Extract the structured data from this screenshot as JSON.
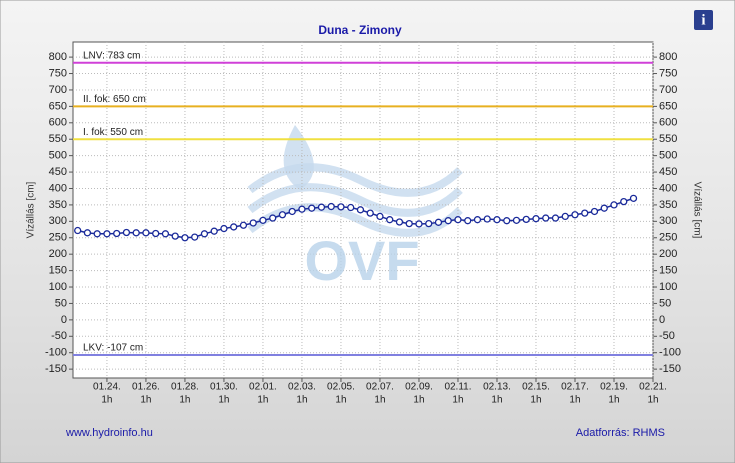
{
  "chart_data": {
    "type": "line",
    "title": "Duna - Zimony",
    "y_label": "Vízállás [cm]",
    "y2_label": "Vízállás [cm]",
    "watermark": "OVF",
    "footer_left": "www.hydroinfo.hu",
    "footer_right": "Adatforrás: RHMS",
    "info_icon": "i",
    "xtick_sublabel": "1h",
    "xlim": [
      22.26,
      52
    ],
    "xticks": [
      {
        "value": 24,
        "label": "01.24."
      },
      {
        "value": 26,
        "label": "01.26."
      },
      {
        "value": 28,
        "label": "01.28."
      },
      {
        "value": 30,
        "label": "01.30."
      },
      {
        "value": 32,
        "label": "02.01."
      },
      {
        "value": 34,
        "label": "02.03."
      },
      {
        "value": 36,
        "label": "02.05."
      },
      {
        "value": 38,
        "label": "02.07."
      },
      {
        "value": 40,
        "label": "02.09."
      },
      {
        "value": 42,
        "label": "02.11."
      },
      {
        "value": 44,
        "label": "02.13."
      },
      {
        "value": 46,
        "label": "02.15."
      },
      {
        "value": 48,
        "label": "02.17."
      },
      {
        "value": 50,
        "label": "02.19."
      },
      {
        "value": 52,
        "label": "02.21."
      }
    ],
    "ylim": [
      -177,
      846
    ],
    "yticks": [
      -150,
      -100,
      -50,
      0,
      50,
      100,
      150,
      200,
      250,
      300,
      350,
      400,
      450,
      500,
      550,
      600,
      650,
      700,
      750,
      800
    ],
    "y2lim": [
      -177,
      846
    ],
    "y2ticks": [
      -150,
      -100,
      -50,
      0,
      50,
      100,
      150,
      200,
      250,
      300,
      350,
      400,
      450,
      500,
      550,
      600,
      650,
      700,
      750,
      800
    ],
    "grid": true,
    "reference_lines": [
      {
        "label": "LNV: 783 cm",
        "value": 783,
        "color": "#d040d8"
      },
      {
        "label": "II. fok: 650 cm",
        "value": 650,
        "color": "#e8b020"
      },
      {
        "label": "I. fok: 550 cm",
        "value": 550,
        "color": "#f0e040"
      },
      {
        "label": "LKV: -107 cm",
        "value": -107,
        "color": "#8080e0"
      }
    ],
    "series": [
      {
        "name": "Vízállás",
        "color": "#1a2a9a",
        "x": [
          22.5,
          23,
          23.5,
          24,
          24.5,
          25,
          25.5,
          26,
          26.5,
          27,
          27.5,
          28,
          28.5,
          29,
          29.5,
          30,
          30.5,
          31,
          31.5,
          32,
          32.5,
          33,
          33.5,
          34,
          34.5,
          35,
          35.5,
          36,
          36.5,
          37,
          37.5,
          38,
          38.5,
          39,
          39.5,
          40,
          40.5,
          41,
          41.5,
          42,
          42.5,
          43,
          43.5,
          44,
          44.5,
          45,
          45.5,
          46,
          46.5,
          47,
          47.5,
          48,
          48.5,
          49,
          49.5,
          50,
          50.5,
          51
        ],
        "values": [
          272,
          265,
          262,
          262,
          263,
          266,
          265,
          265,
          263,
          262,
          255,
          250,
          252,
          262,
          270,
          278,
          283,
          288,
          295,
          303,
          310,
          320,
          330,
          337,
          340,
          343,
          345,
          344,
          342,
          335,
          325,
          315,
          305,
          298,
          293,
          292,
          293,
          297,
          302,
          305,
          302,
          305,
          307,
          305,
          302,
          303,
          306,
          308,
          310,
          310,
          315,
          320,
          325,
          330,
          340,
          350,
          360,
          370
        ]
      }
    ]
  }
}
